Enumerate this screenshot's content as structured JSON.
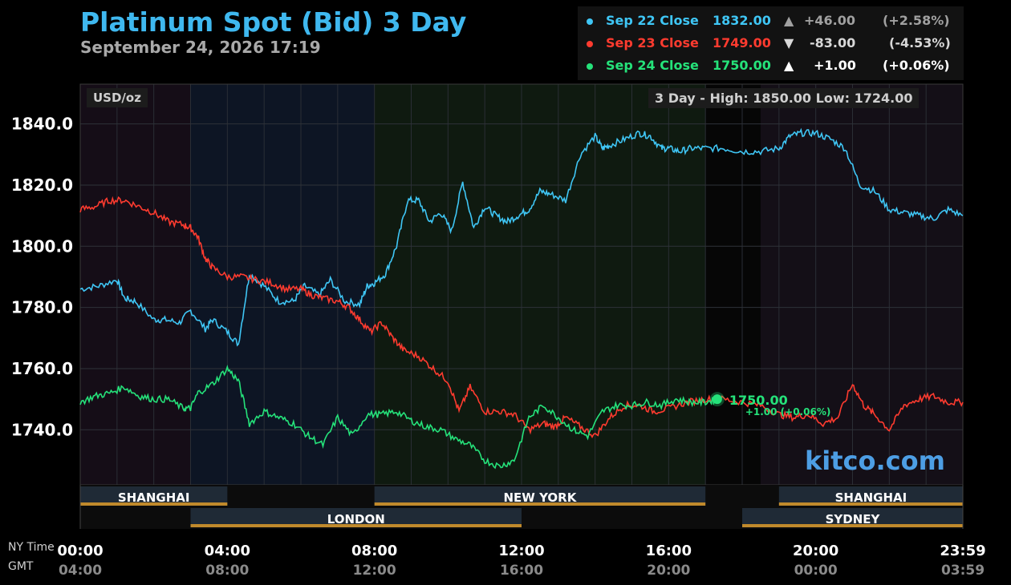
{
  "header": {
    "title": "Platinum Spot (Bid) 3 Day",
    "date": "September 24, 2026 17:19",
    "unit_badge": "USD/oz",
    "high_label": "3 Day - High: 1850.00",
    "low_label": "Low: 1724.00",
    "brand": "kitco.com"
  },
  "legend": [
    {
      "label": "Sep 22 Close",
      "value": "1832.00",
      "arrow": "▲",
      "change": "+46.00",
      "pct": "(+2.58%)",
      "color": "#3fc6f5",
      "text_color": "#3fc6f5",
      "change_color": "#a0a0a0"
    },
    {
      "label": "Sep 23 Close",
      "value": "1749.00",
      "arrow": "▼",
      "change": "-83.00",
      "pct": "(-4.53%)",
      "color": "#ff3b2f",
      "text_color": "#ff3b2f",
      "change_color": "#d8d8d8"
    },
    {
      "label": "Sep 24 Close",
      "value": "1750.00",
      "arrow": "▲",
      "change": "+1.00",
      "pct": "(+0.06%)",
      "color": "#25e27a",
      "text_color": "#25e27a",
      "change_color": "#ffffff"
    }
  ],
  "axes": {
    "ny_time_label": "NY Time",
    "gmt_label": "GMT",
    "ny_ticks": [
      "00:00",
      "04:00",
      "08:00",
      "12:00",
      "16:00",
      "20:00",
      "23:59"
    ],
    "gmt_ticks": [
      "04:00",
      "08:00",
      "12:00",
      "16:00",
      "20:00",
      "00:00",
      "03:59"
    ]
  },
  "sessions": [
    {
      "name": "SHANGHAI",
      "start": 0,
      "end": 4,
      "row": 0
    },
    {
      "name": "NEW YORK",
      "start": 8,
      "end": 17,
      "row": 0
    },
    {
      "name": "SHANGHAI",
      "start": 19,
      "end": 24,
      "row": 0
    },
    {
      "name": "LONDON",
      "start": 3,
      "end": 12,
      "row": 1
    },
    {
      "name": "SYDNEY",
      "start": 18,
      "end": 24,
      "row": 1
    }
  ],
  "current": {
    "value": "1750.00",
    "change": "+1.00 (+0.06%)",
    "hour": 17.32
  },
  "chart_data": {
    "type": "line",
    "x_unit": "NY time (hours)",
    "xlim": [
      0,
      24
    ],
    "ylim": [
      1722,
      1853
    ],
    "yticks": [
      1740.0,
      1760.0,
      1780.0,
      1800.0,
      1820.0,
      1840.0
    ],
    "ytick_labels": [
      "1740.0",
      "1760.0",
      "1780.0",
      "1800.0",
      "1820.0",
      "1840.0"
    ],
    "grid": true,
    "series": [
      {
        "name": "Sep 22 Close",
        "color": "#3fc6f5",
        "x": [
          0,
          0.5,
          1,
          1.2,
          1.5,
          2,
          2.3,
          2.7,
          3,
          3.4,
          3.6,
          4,
          4.3,
          4.6,
          5,
          5.4,
          5.8,
          6.1,
          6.5,
          6.8,
          7.2,
          7.6,
          7.8,
          8,
          8.3,
          8.6,
          8.9,
          9.2,
          9.5,
          9.8,
          10.1,
          10.4,
          10.7,
          11,
          11.3,
          11.6,
          11.9,
          12.2,
          12.5,
          12.8,
          13.2,
          13.6,
          14,
          14.2,
          14.4,
          14.8,
          15.2,
          15.5,
          15.8,
          16,
          16.3,
          16.6,
          17,
          17.5,
          18,
          18.5,
          19,
          19.3,
          19.6,
          20,
          20.4,
          20.8,
          21.2,
          21.6,
          22,
          22.4,
          22.8,
          23.2,
          23.6,
          24
        ],
        "y": [
          1786,
          1787,
          1789,
          1783,
          1782,
          1776,
          1776,
          1775,
          1779,
          1773,
          1776,
          1772,
          1768,
          1791,
          1787,
          1782,
          1782,
          1787,
          1784,
          1789,
          1782,
          1781,
          1787,
          1788,
          1791,
          1800,
          1815,
          1815,
          1808,
          1811,
          1805,
          1821,
          1806,
          1813,
          1810,
          1808,
          1810,
          1812,
          1818,
          1817,
          1815,
          1830,
          1836,
          1832,
          1833,
          1835,
          1837,
          1836,
          1832,
          1832,
          1831,
          1832,
          1832,
          1832,
          1831,
          1831,
          1832,
          1836,
          1837,
          1837,
          1835,
          1832,
          1820,
          1818,
          1812,
          1811,
          1810,
          1809,
          1812,
          1810
        ]
      },
      {
        "name": "Sep 23 Close",
        "color": "#ff3b2f",
        "x": [
          0,
          0.4,
          0.8,
          1.2,
          1.6,
          2,
          2.4,
          2.8,
          3,
          3.2,
          3.4,
          3.6,
          4,
          4.4,
          4.8,
          5.2,
          5.6,
          6,
          6.3,
          6.6,
          7,
          7.3,
          7.6,
          7.9,
          8.2,
          8.5,
          8.8,
          9.2,
          9.6,
          10,
          10.3,
          10.6,
          11,
          11.4,
          11.8,
          12.2,
          12.6,
          12.9,
          13.2,
          13.6,
          14,
          14.4,
          14.8,
          15.2,
          15.6,
          16,
          16.5,
          17,
          17.5,
          18,
          18.5,
          19,
          19.4,
          19.8,
          20.2,
          20.6,
          21,
          21.3,
          21.6,
          22,
          22.4,
          22.8,
          23.2,
          23.6,
          24
        ],
        "y": [
          1812,
          1813,
          1815,
          1815,
          1813,
          1811,
          1808,
          1807,
          1806,
          1803,
          1796,
          1793,
          1790,
          1790,
          1789,
          1788,
          1786,
          1786,
          1784,
          1783,
          1782,
          1780,
          1776,
          1772,
          1775,
          1770,
          1766,
          1764,
          1760,
          1756,
          1746,
          1754,
          1746,
          1746,
          1745,
          1740,
          1742,
          1741,
          1744,
          1741,
          1738,
          1744,
          1748,
          1748,
          1746,
          1747,
          1749,
          1750,
          1750,
          1749,
          1748,
          1745,
          1744,
          1745,
          1742,
          1744,
          1755,
          1748,
          1745,
          1740,
          1748,
          1750,
          1751,
          1749,
          1749
        ]
      },
      {
        "name": "Sep 24 Close",
        "color": "#25e27a",
        "x": [
          0,
          0.4,
          0.8,
          1.2,
          1.6,
          2,
          2.4,
          2.8,
          3,
          3.2,
          3.6,
          4,
          4.3,
          4.6,
          5,
          5.4,
          5.8,
          6.2,
          6.6,
          7,
          7.4,
          7.8,
          8.2,
          8.6,
          9,
          9.4,
          9.8,
          10.2,
          10.6,
          11,
          11.4,
          11.8,
          12.2,
          12.6,
          13,
          13.4,
          13.8,
          14.2,
          14.6,
          15,
          15.4,
          15.8,
          16.2,
          16.6,
          17,
          17.32
        ],
        "y": [
          1749,
          1751,
          1752,
          1754,
          1751,
          1750,
          1750,
          1747,
          1747,
          1752,
          1755,
          1760,
          1756,
          1742,
          1746,
          1744,
          1742,
          1738,
          1735,
          1744,
          1738,
          1745,
          1745,
          1746,
          1743,
          1741,
          1740,
          1737,
          1735,
          1730,
          1728,
          1730,
          1744,
          1748,
          1744,
          1740,
          1738,
          1746,
          1748,
          1748,
          1749,
          1748,
          1750,
          1749,
          1749,
          1750
        ]
      }
    ]
  }
}
